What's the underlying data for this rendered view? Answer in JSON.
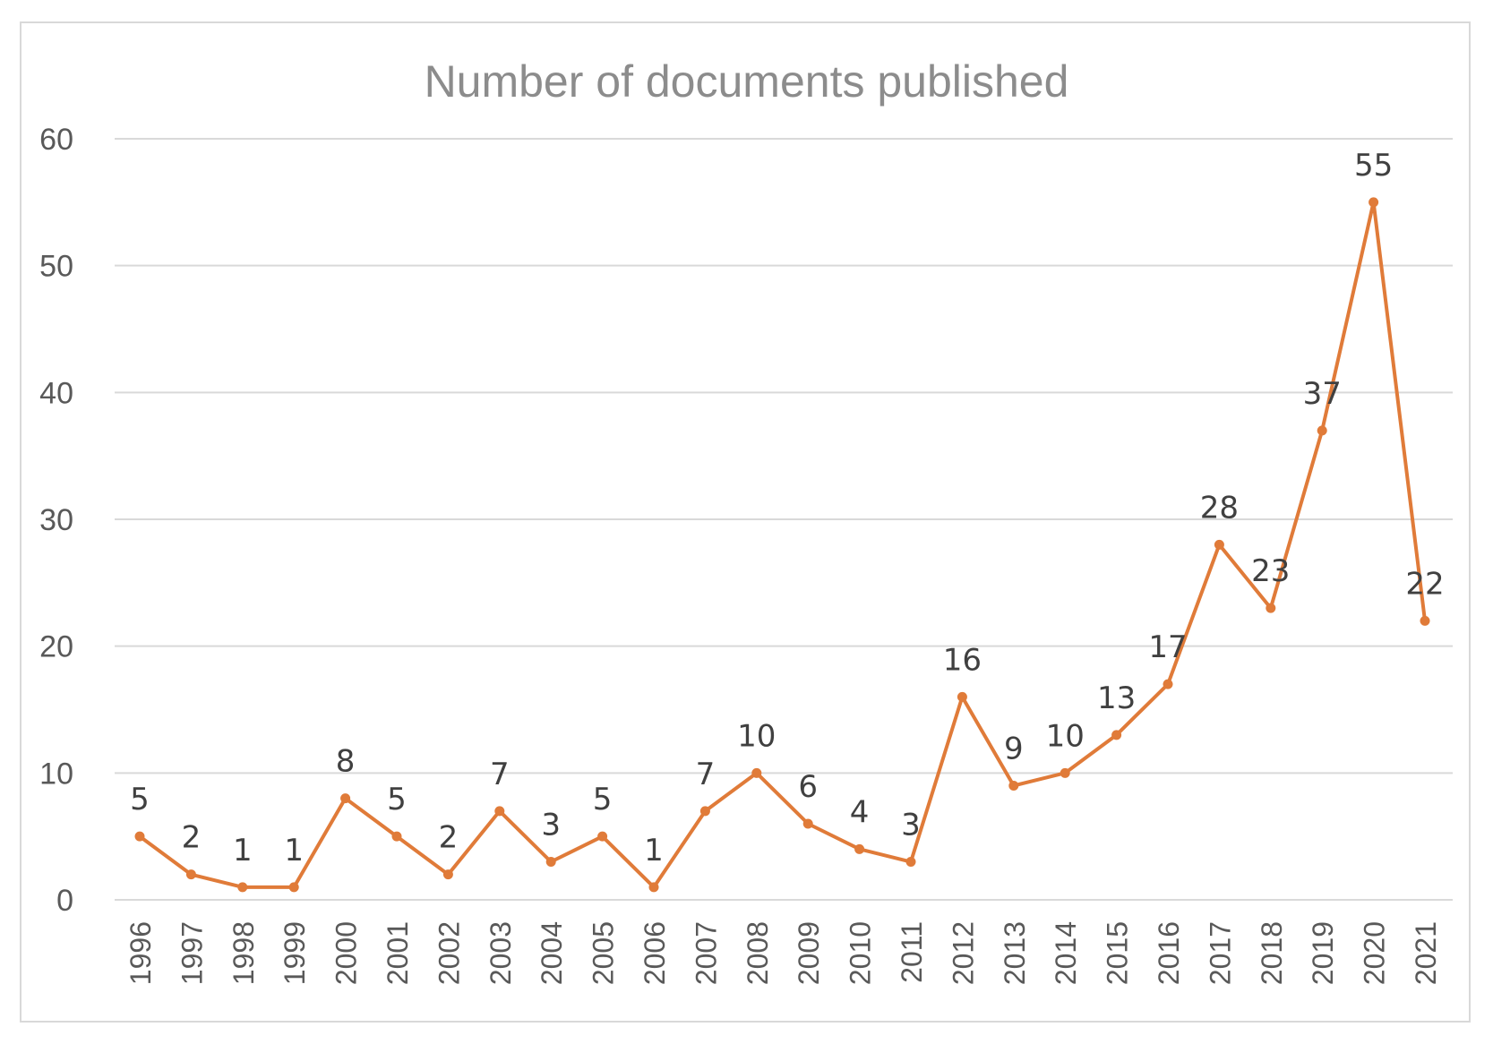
{
  "chart_data": {
    "type": "line",
    "title": "Number of documents published",
    "xlabel": "",
    "ylabel": "",
    "ylim": [
      0,
      60
    ],
    "yticks": [
      0,
      10,
      20,
      30,
      40,
      50,
      60
    ],
    "grid": true,
    "legend": "none",
    "categories": [
      "1996",
      "1997",
      "1998",
      "1999",
      "2000",
      "2001",
      "2002",
      "2003",
      "2004",
      "2005",
      "2006",
      "2007",
      "2008",
      "2009",
      "2010",
      "2011",
      "2012",
      "2013",
      "2014",
      "2015",
      "2016",
      "2017",
      "2018",
      "2019",
      "2020",
      "2021"
    ],
    "series": [
      {
        "values": [
          5,
          2,
          1,
          1,
          8,
          5,
          2,
          7,
          3,
          5,
          1,
          7,
          10,
          6,
          4,
          3,
          16,
          9,
          10,
          13,
          17,
          28,
          23,
          37,
          55,
          22
        ]
      }
    ],
    "data_labels": true
  },
  "colors": {
    "line": "#e07b39",
    "grid": "#d9d9d9",
    "title": "#8c8c8c",
    "tick": "#595959",
    "label": "#404040"
  }
}
